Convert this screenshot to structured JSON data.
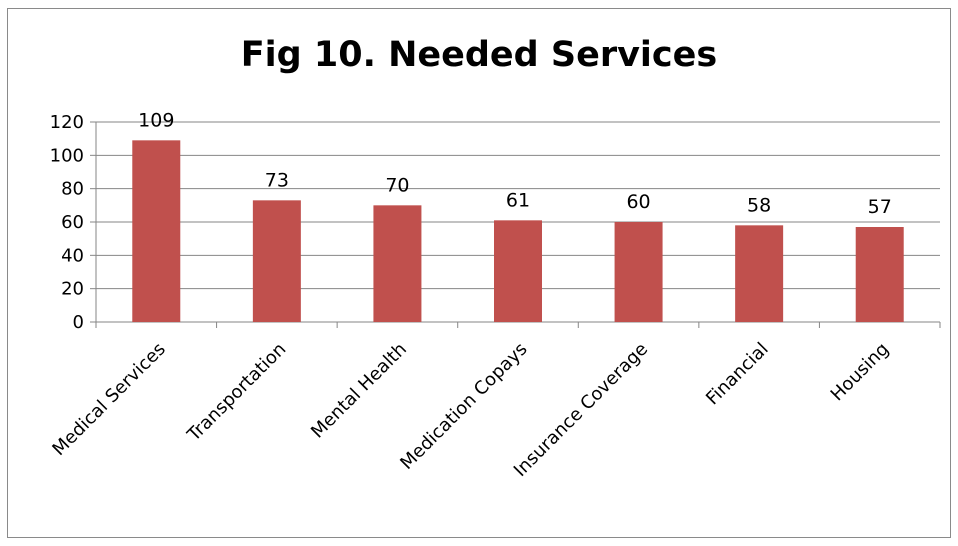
{
  "chart_data": {
    "type": "bar",
    "title": "Fig 10. Needed Services",
    "xlabel": "",
    "ylabel": "",
    "categories": [
      "Medical Services",
      "Transportation",
      "Mental Health",
      "Medication Copays",
      "Insurance Coverage",
      "Financial",
      "Housing"
    ],
    "values": [
      109,
      73,
      70,
      61,
      60,
      58,
      57
    ],
    "data_labels": [
      "109",
      "73",
      "70",
      "61",
      "60",
      "58",
      "57"
    ],
    "ylim": [
      0,
      120
    ],
    "yticks": [
      0,
      20,
      40,
      60,
      80,
      100,
      120
    ],
    "ytick_labels": [
      "0",
      "20",
      "40",
      "60",
      "80",
      "100",
      "120"
    ],
    "grid": true,
    "legend": "none",
    "colors": {
      "bar": "#c0504d",
      "gridline": "#868686",
      "axis": "#868686",
      "frame": "#8a8a8a"
    }
  }
}
